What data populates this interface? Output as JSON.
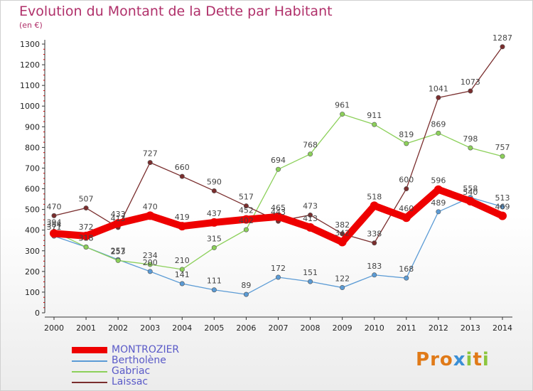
{
  "header": {
    "title": "Evolution du Montant de la Dette par Habitant",
    "subtitle": "(en €)"
  },
  "logo": {
    "text": "Proxiti",
    "colors": [
      "#e07a18",
      "#3a8fd6",
      "#8cc63e"
    ]
  },
  "chart_data": {
    "type": "line",
    "title": "Evolution du Montant de la Dette par Habitant",
    "subtitle": "(en €)",
    "xlabel": "",
    "ylabel": "",
    "x": [
      "2000",
      "2001",
      "2002",
      "2003",
      "2004",
      "2005",
      "2006",
      "2007",
      "2008",
      "2009",
      "2010",
      "2011",
      "2012",
      "2013",
      "2014"
    ],
    "ylim": [
      0,
      1300
    ],
    "yticks": [
      0,
      100,
      200,
      300,
      400,
      500,
      600,
      700,
      800,
      900,
      1000,
      1100,
      1200,
      1300
    ],
    "grid": false,
    "legend_position": "bottom-left",
    "series": [
      {
        "name": "MONTROZIER",
        "color": "#ee0000",
        "emphasis": true,
        "values": [
          384,
          372,
          433,
          470,
          419,
          437,
          452,
          465,
          413,
          342,
          518,
          460,
          596,
          540,
          469
        ]
      },
      {
        "name": "Bertholène",
        "color": "#5b9bd5",
        "emphasis": false,
        "values": [
          371,
          318,
          257,
          200,
          141,
          111,
          89,
          172,
          151,
          122,
          183,
          168,
          489,
          558,
          513
        ]
      },
      {
        "name": "Gabriac",
        "color": "#8cd05a",
        "emphasis": false,
        "values": [
          394,
          318,
          253,
          234,
          210,
          315,
          402,
          694,
          768,
          961,
          911,
          819,
          869,
          798,
          757
        ]
      },
      {
        "name": "Laissac",
        "color": "#7a2e2e",
        "emphasis": false,
        "values": [
          470,
          507,
          413,
          727,
          660,
          590,
          517,
          443,
          473,
          382,
          338,
          600,
          1041,
          1073,
          1287
        ]
      }
    ]
  }
}
